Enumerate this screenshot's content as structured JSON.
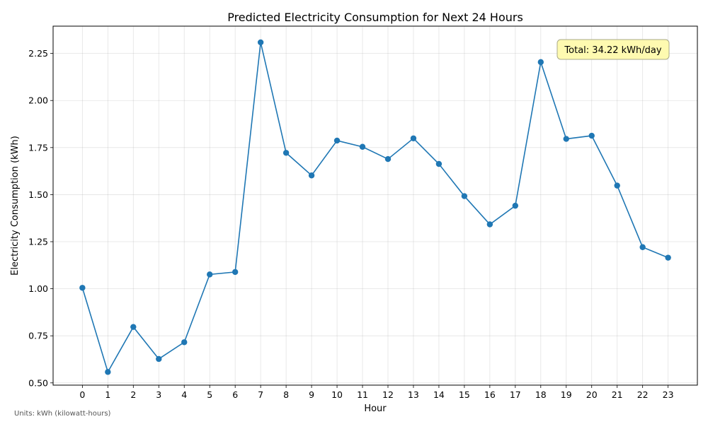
{
  "chart_data": {
    "type": "line",
    "title": "Predicted Electricity Consumption for Next 24 Hours",
    "xlabel": "Hour",
    "ylabel": "Electricity Consumption (kWh)",
    "x": [
      0,
      1,
      2,
      3,
      4,
      5,
      6,
      7,
      8,
      9,
      10,
      11,
      12,
      13,
      14,
      15,
      16,
      17,
      18,
      19,
      20,
      21,
      22,
      23
    ],
    "x_tick_labels": [
      "0",
      "1",
      "2",
      "3",
      "4",
      "5",
      "6",
      "7",
      "8",
      "9",
      "10",
      "11",
      "12",
      "13",
      "14",
      "15",
      "16",
      "17",
      "18",
      "19",
      "20",
      "21",
      "22",
      "23"
    ],
    "series": [
      {
        "values": [
          1.005,
          0.558,
          0.797,
          0.627,
          0.716,
          1.076,
          1.089,
          2.309,
          1.722,
          1.602,
          1.787,
          1.754,
          1.689,
          1.799,
          1.663,
          1.492,
          1.342,
          1.441,
          2.204,
          1.796,
          1.813,
          1.548,
          1.221,
          1.165
        ],
        "color": "#1f77b4"
      }
    ],
    "xlim": [
      -1.15,
      24.15
    ],
    "ylim": [
      0.488,
      2.395
    ],
    "y_ticks": [
      0.5,
      0.75,
      1.0,
      1.25,
      1.5,
      1.75,
      2.0,
      2.25
    ],
    "y_tick_labels": [
      "0.50",
      "0.75",
      "1.00",
      "1.25",
      "1.50",
      "1.75",
      "2.00",
      "2.25"
    ],
    "grid": true,
    "annotation": {
      "text": "Total: 34.22 kWh/day",
      "background": "#fefab0",
      "border": "#aaaa88"
    }
  },
  "footnote": "Units: kWh (kilowatt-hours)"
}
